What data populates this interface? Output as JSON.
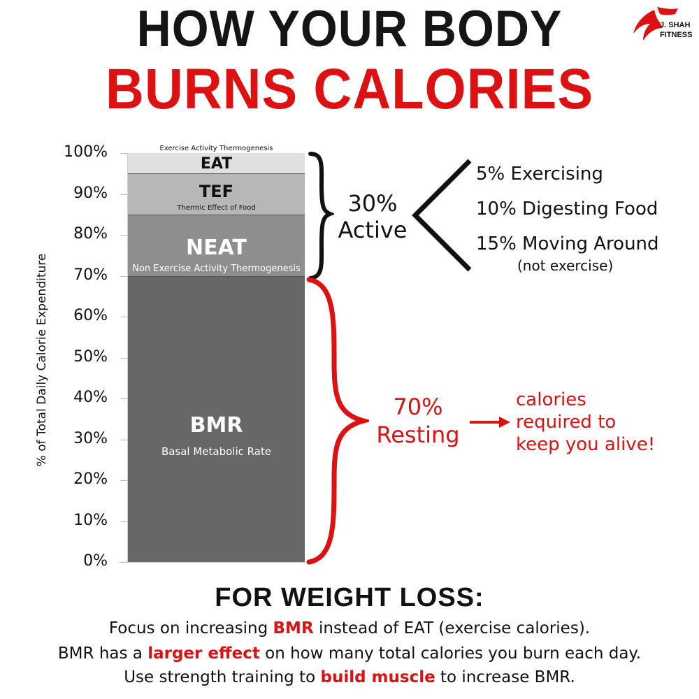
{
  "header": {
    "line1": "HOW YOUR BODY",
    "line2": "BURNS CALORIES",
    "logo_line1": "J. SHAH",
    "logo_line2": "FITNESS"
  },
  "chart_data": {
    "type": "bar",
    "stacked": true,
    "ylabel": "% of Total Daily Calorie Expenditure",
    "ylim": [
      0,
      100
    ],
    "y_ticks": [
      "0%",
      "10%",
      "20%",
      "30%",
      "40%",
      "50%",
      "60%",
      "70%",
      "80%",
      "90%",
      "100%"
    ],
    "grid": false,
    "segments": [
      {
        "abbr": "BMR",
        "name": "Basal Metabolic Rate",
        "start": 0,
        "end": 70,
        "color": "#676767"
      },
      {
        "abbr": "NEAT",
        "name": "Non Exercise Activity Thermogenesis",
        "start": 70,
        "end": 85,
        "color": "#8e8e8e"
      },
      {
        "abbr": "TEF",
        "name": "Thermic Effect of Food",
        "start": 85,
        "end": 95,
        "color": "#b7b7b7"
      },
      {
        "abbr": "EAT",
        "name": "Exercise Activity Thermogenesis",
        "start": 95,
        "end": 100,
        "color": "#e0e0e0"
      }
    ]
  },
  "annotations": {
    "active": {
      "pct": "30%",
      "label": "Active",
      "items": [
        "5% Exercising",
        "10% Digesting Food",
        "15% Moving Around"
      ],
      "note": "(not exercise)"
    },
    "resting": {
      "pct": "70%",
      "label": "Resting",
      "lines": [
        "calories",
        "required to",
        "keep you alive!"
      ]
    }
  },
  "footer": {
    "heading": "FOR WEIGHT LOSS:",
    "line1": {
      "pre": "Focus on increasing ",
      "hl": "BMR",
      "post": " instead of EAT (exercise calories)."
    },
    "line2": {
      "pre": "BMR has a ",
      "hl": "larger effect",
      "post": " on how many total calories you burn each day."
    },
    "line3": {
      "pre": "Use strength training to ",
      "hl": "build muscle",
      "post": " to increase BMR."
    }
  },
  "colors": {
    "accent_red": "#dd1111",
    "text": "#111111"
  }
}
